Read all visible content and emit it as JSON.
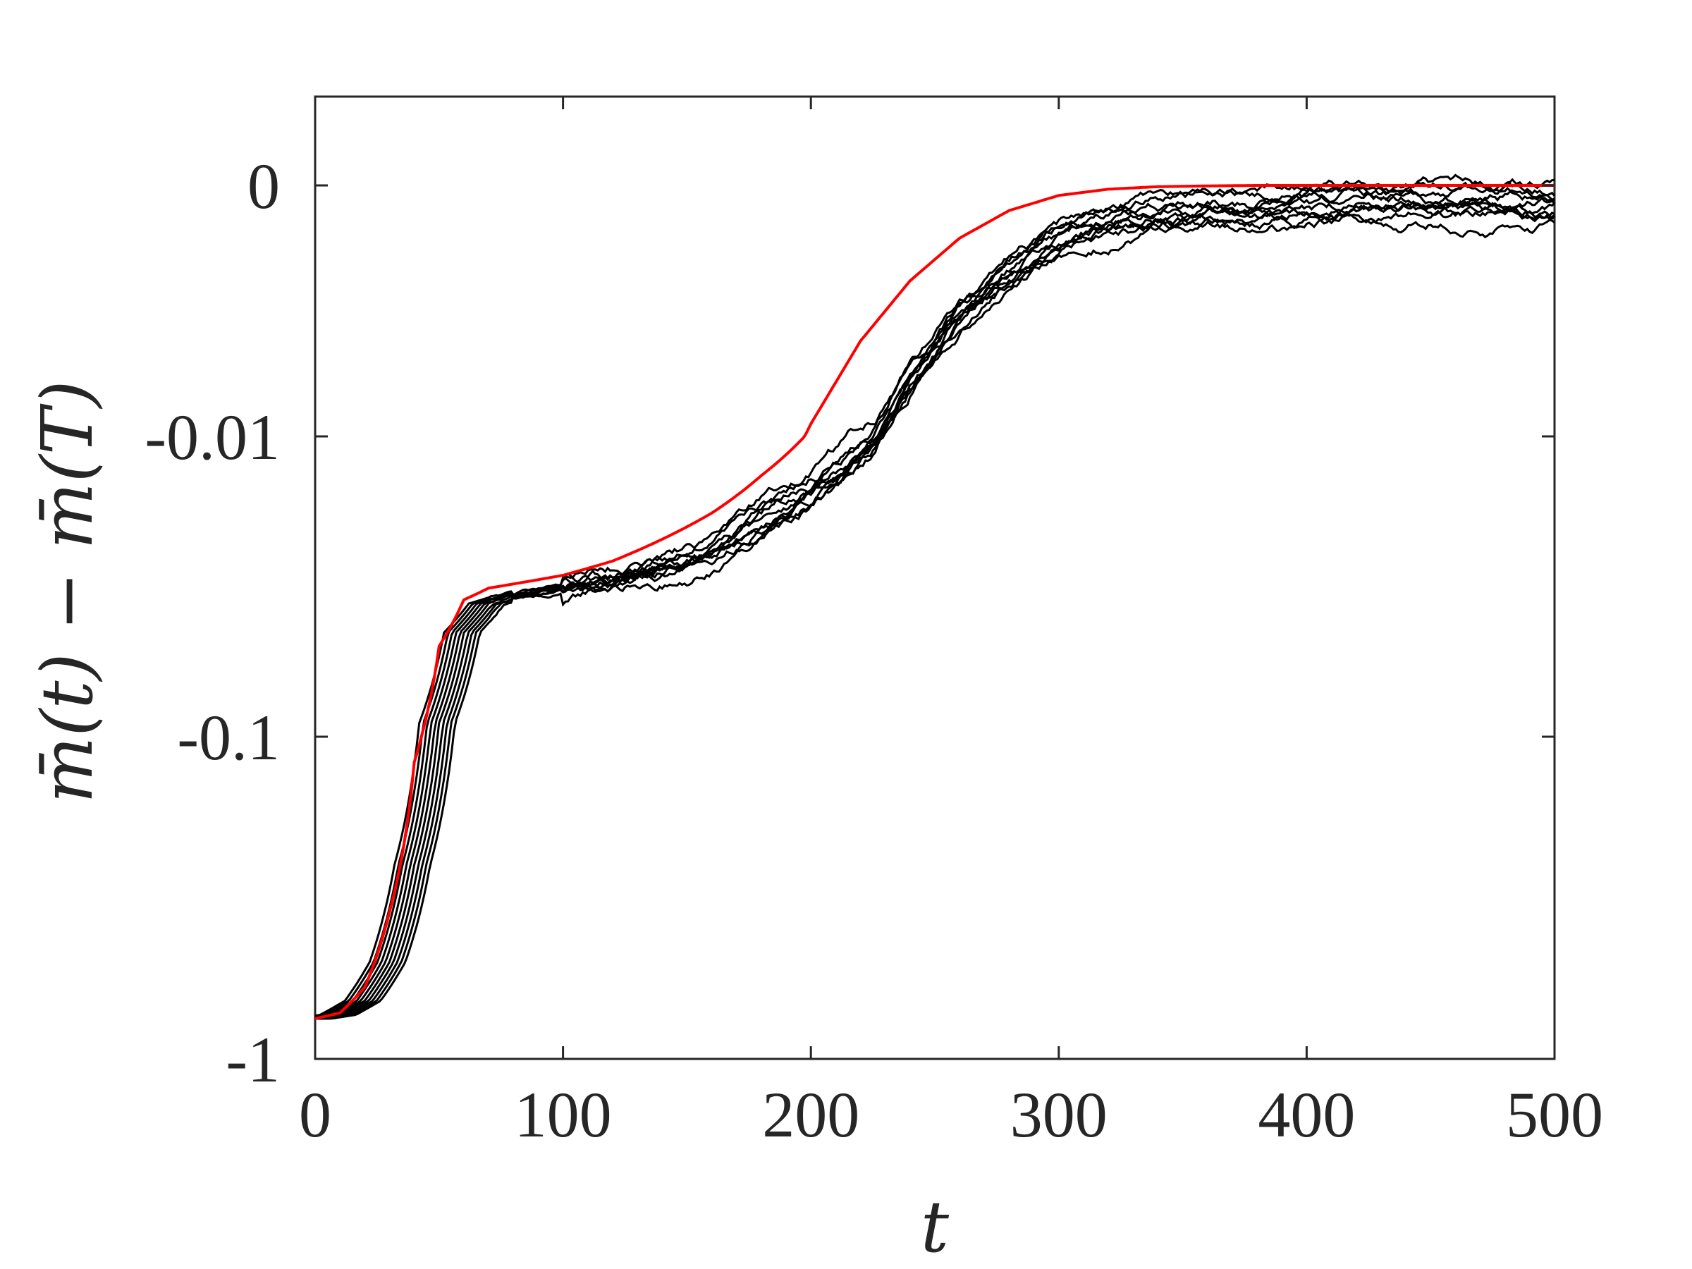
{
  "chart_data": {
    "type": "line",
    "title": "",
    "xlabel": "t",
    "ylabel": "m̄(t) − m̄(T)",
    "xlim": [
      0,
      500
    ],
    "x_ticks": [
      {
        "value": 0,
        "label": "0"
      },
      {
        "value": 100,
        "label": "100"
      },
      {
        "value": 200,
        "label": "200"
      },
      {
        "value": 300,
        "label": "300"
      },
      {
        "value": 400,
        "label": "400"
      },
      {
        "value": 500,
        "label": "500"
      }
    ],
    "y_ticks": [
      {
        "value": 0,
        "label": "0"
      },
      {
        "value": -0.01,
        "label": "-0.01"
      },
      {
        "value": -0.1,
        "label": "-0.1"
      },
      {
        "value": -1,
        "label": "-1"
      }
    ],
    "grid": false,
    "legend": "none",
    "colors": {
      "samples": "#000000",
      "mean": "#ff0000",
      "axes": "#262626"
    },
    "series": [
      {
        "style": "red-smooth",
        "x": [
          0,
          10,
          20,
          30,
          40,
          50,
          60,
          70,
          80,
          100,
          120,
          140,
          160,
          180,
          200,
          220,
          240,
          260,
          280,
          300,
          320,
          340,
          360,
          380,
          400,
          450,
          500
        ],
        "y": [
          -0.75,
          -0.72,
          -0.6,
          -0.35,
          -0.12,
          -0.05,
          -0.035,
          -0.032,
          -0.031,
          -0.029,
          -0.026,
          -0.022,
          -0.018,
          -0.0135,
          -0.0095,
          -0.0062,
          -0.0038,
          -0.0021,
          -0.001,
          -0.0004,
          -0.00015,
          -5e-05,
          -2e-05,
          0,
          0,
          0,
          0
        ]
      },
      {
        "style": "black-samples",
        "count": 10,
        "x": [
          0,
          10,
          20,
          30,
          40,
          50,
          60,
          70,
          80,
          100,
          120,
          140,
          160,
          180,
          200,
          220,
          240,
          260,
          280,
          300,
          320,
          340,
          360,
          380,
          400,
          450,
          500
        ],
        "y": [
          -0.75,
          -0.73,
          -0.66,
          -0.5,
          -0.25,
          -0.09,
          -0.045,
          -0.036,
          -0.034,
          -0.032,
          -0.03,
          -0.027,
          -0.024,
          -0.019,
          -0.015,
          -0.011,
          -0.0075,
          -0.005,
          -0.0033,
          -0.0021,
          -0.0014,
          -0.001,
          -0.0008,
          -0.0007,
          -0.0006,
          -0.0006,
          -0.0006
        ]
      }
    ]
  }
}
